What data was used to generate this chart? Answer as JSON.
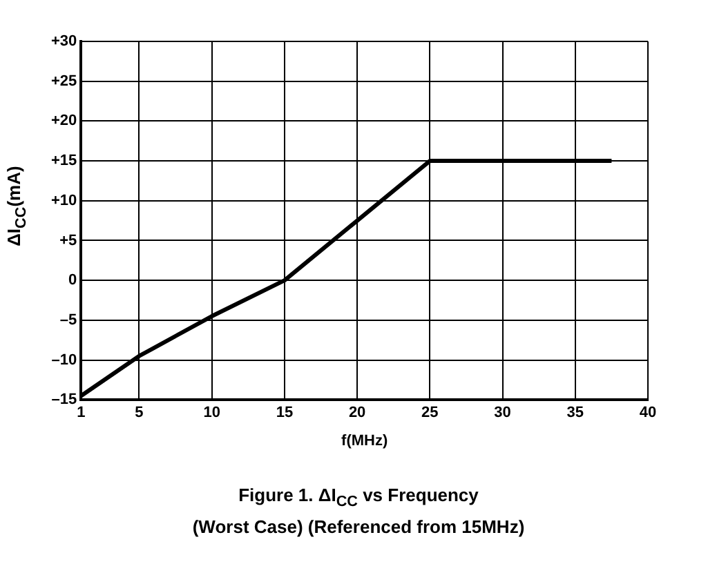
{
  "chart_data": {
    "type": "line",
    "title": "Figure 1.   ΔI$_{CC}$ vs Frequency",
    "subtitle": "(Worst Case) (Referenced from 15MHz)",
    "xlabel": "f(MHz)",
    "ylabel": "ΔI$_{CC}$(mA)",
    "x": [
      1,
      5,
      10,
      15,
      20,
      25,
      37.5
    ],
    "series": [
      {
        "color": "#000000",
        "values": [
          -14.5,
          -9.5,
          -4.5,
          0,
          7.5,
          15,
          15
        ]
      }
    ],
    "xlim": [
      1,
      40
    ],
    "xticks": [
      1,
      5,
      10,
      15,
      20,
      25,
      30,
      35,
      40
    ],
    "ylim": [
      -15,
      30
    ],
    "yticks": [
      {
        "value": -15,
        "label": "–15"
      },
      {
        "value": -10,
        "label": "–10"
      },
      {
        "value": -5,
        "label": "–5"
      },
      0,
      {
        "value": 5,
        "label": "+5"
      },
      {
        "value": 10,
        "label": "+10"
      },
      {
        "value": 15,
        "label": "+15"
      },
      {
        "value": 20,
        "label": "+20"
      },
      {
        "value": 25,
        "label": "+25"
      },
      {
        "value": 30,
        "label": "+30"
      }
    ],
    "grid": true,
    "legend": false,
    "marker": "none",
    "line_style": "solid"
  }
}
